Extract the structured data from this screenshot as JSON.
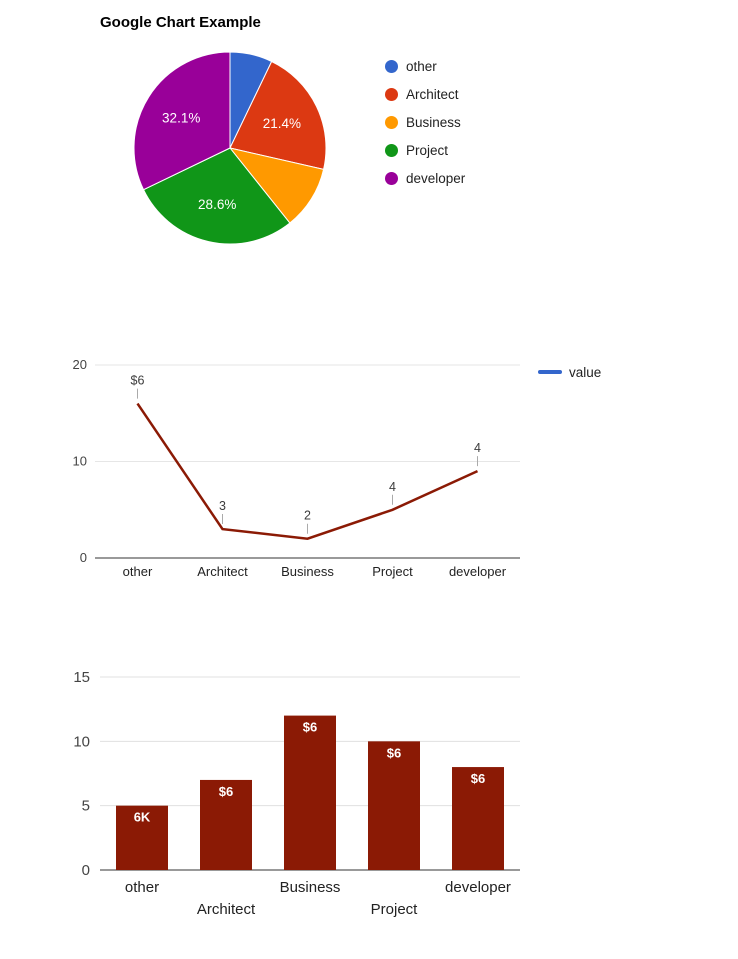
{
  "title": "Google Chart Example",
  "legend": {
    "pie_items": [
      {
        "label": "other",
        "color": "#3366cc"
      },
      {
        "label": "Architect",
        "color": "#dc3912"
      },
      {
        "label": "Business",
        "color": "#ff9900"
      },
      {
        "label": "Project",
        "color": "#109618"
      },
      {
        "label": "developer",
        "color": "#990099"
      }
    ],
    "line_items": [
      {
        "label": "value",
        "color": "#3366cc"
      }
    ]
  },
  "chart_data": [
    {
      "type": "pie",
      "title": "Google Chart Example",
      "categories": [
        "other",
        "Architect",
        "Business",
        "Project",
        "developer"
      ],
      "values": [
        2,
        6,
        3,
        8,
        9
      ],
      "percents": [
        7.1,
        21.4,
        10.7,
        28.6,
        32.1
      ],
      "percent_labels": [
        "",
        "21.4%",
        "",
        "28.6%",
        "32.1%"
      ],
      "colors": [
        "#3366cc",
        "#dc3912",
        "#ff9900",
        "#109618",
        "#990099"
      ],
      "legend_position": "right"
    },
    {
      "type": "line",
      "categories": [
        "other",
        "Architect",
        "Business",
        "Project",
        "developer"
      ],
      "series": [
        {
          "name": "value",
          "values": [
            16,
            3,
            2,
            5,
            9
          ]
        }
      ],
      "annotations": [
        "$6",
        "3",
        "2",
        "4",
        "4"
      ],
      "line_color": "#8b1a05",
      "legend_swatch_color": "#3366cc",
      "ylim": [
        0,
        20
      ],
      "yticks": [
        0,
        10,
        20
      ],
      "grid": true,
      "legend_position": "right"
    },
    {
      "type": "bar",
      "categories": [
        "other",
        "Architect",
        "Business",
        "Project",
        "developer"
      ],
      "values": [
        5,
        7,
        12,
        10,
        8
      ],
      "bar_labels": [
        "6K",
        "$6",
        "$6",
        "$6",
        "$6"
      ],
      "bar_color": "#8b1a05",
      "ylim": [
        0,
        15
      ],
      "yticks": [
        0,
        5,
        10,
        15
      ],
      "grid": true,
      "legend_position": "none"
    }
  ]
}
